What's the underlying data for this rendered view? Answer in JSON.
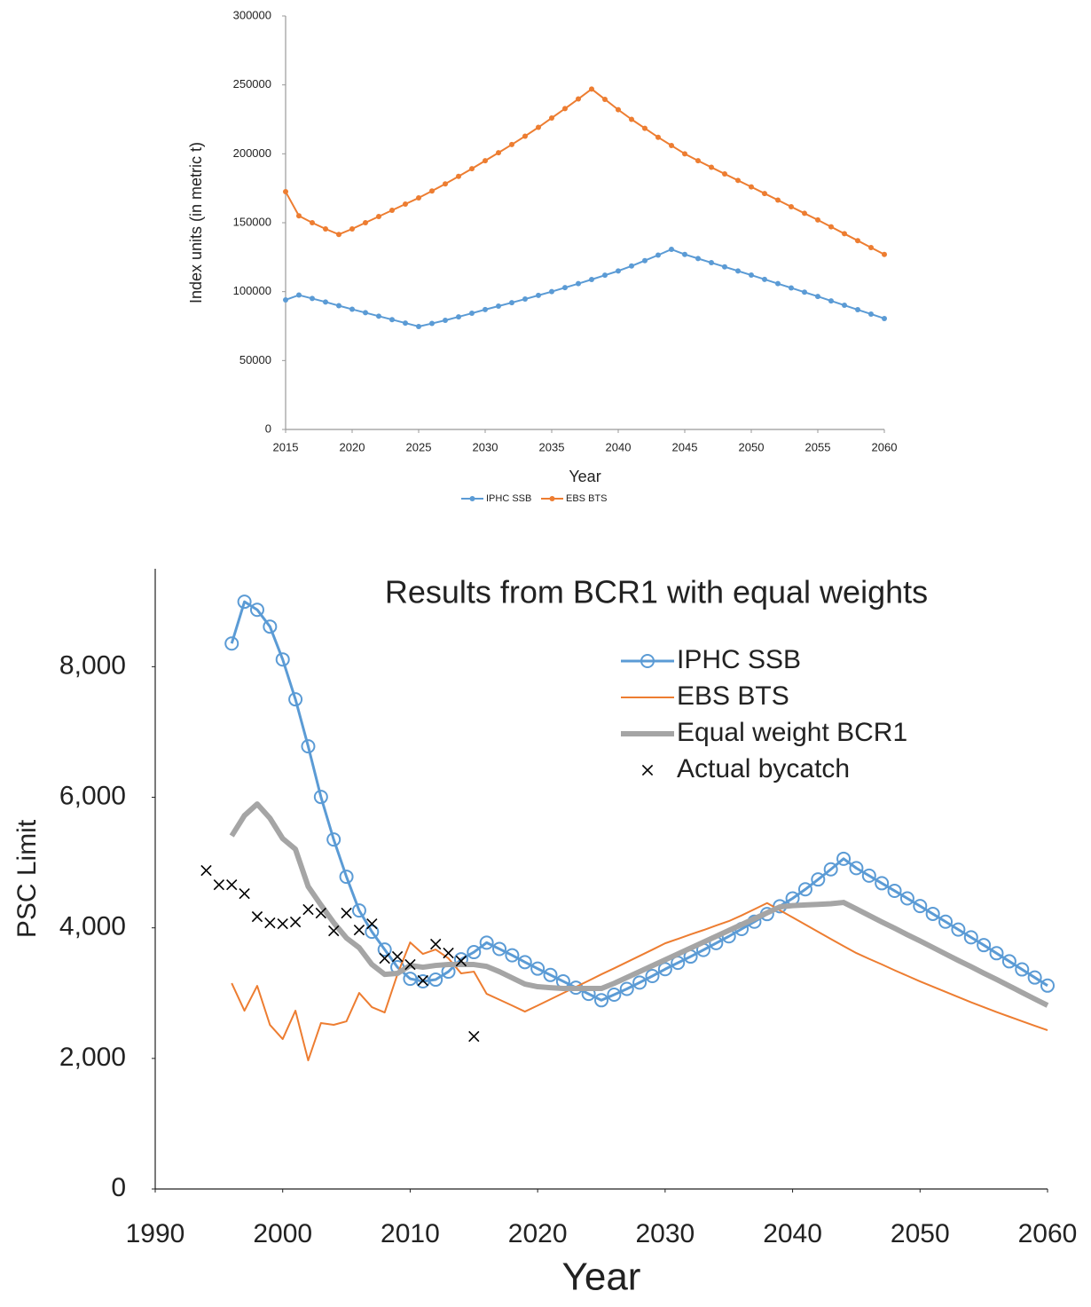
{
  "chart_data": [
    {
      "type": "line",
      "xlabel": "Year",
      "ylabel": "Index units (in metric t)",
      "x": [
        2015,
        2016,
        2017,
        2018,
        2019,
        2020,
        2021,
        2022,
        2023,
        2024,
        2025,
        2026,
        2027,
        2028,
        2029,
        2030,
        2031,
        2032,
        2033,
        2034,
        2035,
        2036,
        2037,
        2038,
        2039,
        2040,
        2041,
        2042,
        2043,
        2044,
        2045,
        2046,
        2047,
        2048,
        2049,
        2050,
        2051,
        2052,
        2053,
        2054,
        2055,
        2056,
        2057,
        2058,
        2059,
        2060
      ],
      "xlim": [
        2015,
        2060
      ],
      "xticks": [
        2015,
        2020,
        2025,
        2030,
        2035,
        2040,
        2045,
        2050,
        2055,
        2060
      ],
      "ylim": [
        0,
        300000
      ],
      "yticks": [
        0,
        50000,
        100000,
        150000,
        200000,
        250000,
        300000
      ],
      "grid": false,
      "legend": "bottom",
      "series": [
        {
          "name": "IPHC SSB",
          "color": "#5b9bd5",
          "marker": "circle",
          "linewidth": 2,
          "values": [
            94000,
            97500,
            95000,
            92500,
            89800,
            87200,
            84700,
            82200,
            79700,
            77200,
            74700,
            76900,
            79200,
            81700,
            84300,
            87000,
            89500,
            92000,
            94600,
            97300,
            100000,
            102900,
            105800,
            108800,
            111900,
            115000,
            118600,
            122500,
            126500,
            130700,
            127000,
            124000,
            121000,
            118000,
            115000,
            112000,
            108900,
            105800,
            102700,
            99600,
            96500,
            93300,
            90100,
            86900,
            83700,
            80500
          ]
        },
        {
          "name": "EBS BTS",
          "color": "#ed7d31",
          "marker": "circle",
          "linewidth": 2,
          "values": [
            172500,
            155000,
            150000,
            145500,
            141500,
            145500,
            150000,
            154500,
            159000,
            163500,
            168000,
            173000,
            178200,
            183600,
            189200,
            195000,
            200800,
            206700,
            212800,
            219200,
            226000,
            232800,
            239800,
            247000,
            239500,
            232000,
            225000,
            218500,
            212000,
            206000,
            200000,
            195000,
            190200,
            185400,
            180700,
            176000,
            171200,
            166400,
            161600,
            156800,
            152000,
            147000,
            142000,
            137000,
            132000,
            127000
          ]
        }
      ]
    },
    {
      "type": "line",
      "title": "Results from BCR1 with equal weights",
      "xlabel": "Year",
      "ylabel": "PSC Limit",
      "x": [
        1996,
        1997,
        1998,
        1999,
        2000,
        2001,
        2002,
        2003,
        2004,
        2005,
        2006,
        2007,
        2008,
        2009,
        2010,
        2011,
        2012,
        2013,
        2014,
        2015,
        2016,
        2017,
        2018,
        2019,
        2020,
        2021,
        2022,
        2023,
        2024,
        2025,
        2026,
        2027,
        2028,
        2029,
        2030,
        2031,
        2032,
        2033,
        2034,
        2035,
        2036,
        2037,
        2038,
        2039,
        2040,
        2041,
        2042,
        2043,
        2044,
        2045,
        2046,
        2047,
        2048,
        2049,
        2050,
        2051,
        2052,
        2053,
        2054,
        2055,
        2056,
        2057,
        2058,
        2059,
        2060
      ],
      "xlim": [
        1990,
        2060
      ],
      "xticks": [
        1990,
        2000,
        2010,
        2020,
        2030,
        2040,
        2050,
        2060
      ],
      "ylim": [
        0,
        9500
      ],
      "yticks": [
        0,
        {
          "value": 2000,
          "label": "2,000"
        },
        {
          "value": 4000,
          "label": "4,000"
        },
        {
          "value": 6000,
          "label": "6,000"
        },
        {
          "value": 8000,
          "label": "8,000"
        }
      ],
      "grid": false,
      "legend": "upper-right",
      "series": [
        {
          "name": "IPHC SSB",
          "color": "#5b9bd5",
          "marker": "open-circle",
          "linewidth": 3,
          "values": [
            8355,
            8995,
            8872,
            8614,
            8111,
            7500,
            6780,
            6005,
            5353,
            4783,
            4266,
            3940,
            3668,
            3397,
            3220,
            3180,
            3207,
            3329,
            3519,
            3628,
            3773,
            3677,
            3580,
            3475,
            3375,
            3278,
            3181,
            3084,
            2988,
            2891,
            2976,
            3065,
            3162,
            3262,
            3367,
            3464,
            3560,
            3661,
            3766,
            3870,
            3982,
            4094,
            4211,
            4331,
            4451,
            4590,
            4741,
            4896,
            5058,
            4915,
            4799,
            4683,
            4567,
            4451,
            4334,
            4214,
            4094,
            3974,
            3855,
            3735,
            3611,
            3487,
            3363,
            3239,
            3115
          ]
        },
        {
          "name": "EBS BTS",
          "color": "#ed7d31",
          "marker": "none",
          "linewidth": 2,
          "values": [
            3152,
            2731,
            3111,
            2514,
            2296,
            2731,
            1970,
            2541,
            2514,
            2568,
            3003,
            2785,
            2704,
            3288,
            3777,
            3600,
            3668,
            3533,
            3302,
            3329,
            2989,
            2900,
            2810,
            2717,
            2810,
            2905,
            3000,
            3095,
            3190,
            3288,
            3380,
            3475,
            3570,
            3665,
            3763,
            3830,
            3900,
            3965,
            4035,
            4103,
            4190,
            4285,
            4380,
            4270,
            4160,
            4050,
            3940,
            3830,
            3720,
            3614,
            3525,
            3440,
            3350,
            3265,
            3179,
            3100,
            3020,
            2940,
            2860,
            2785,
            2710,
            2640,
            2570,
            2500,
            2432
          ]
        },
        {
          "name": "Equal weight BCR1",
          "color": "#a5a5a5",
          "marker": "none",
          "linewidth": 6,
          "values": [
            5408,
            5720,
            5897,
            5679,
            5367,
            5204,
            4633,
            4350,
            4080,
            3845,
            3696,
            3438,
            3288,
            3302,
            3424,
            3397,
            3424,
            3438,
            3438,
            3438,
            3410,
            3329,
            3234,
            3139,
            3098,
            3084,
            3071,
            3071,
            3071,
            3071,
            3150,
            3240,
            3330,
            3420,
            3510,
            3600,
            3690,
            3780,
            3870,
            3960,
            4050,
            4140,
            4230,
            4320,
            4340,
            4350,
            4360,
            4370,
            4389,
            4290,
            4190,
            4090,
            3995,
            3895,
            3800,
            3700,
            3600,
            3500,
            3405,
            3305,
            3210,
            3110,
            3010,
            2910,
            2813
          ]
        },
        {
          "name": "Actual bycatch",
          "color": "#000000",
          "marker": "x",
          "linewidth": 0,
          "x": [
            1994,
            1995,
            1996,
            1997,
            1998,
            1999,
            2000,
            2001,
            2002,
            2003,
            2004,
            2005,
            2006,
            2007,
            2008,
            2009,
            2010,
            2011,
            2012,
            2013,
            2014,
            2015
          ],
          "values": [
            4878,
            4660,
            4660,
            4524,
            4171,
            4076,
            4062,
            4090,
            4280,
            4226,
            3954,
            4226,
            3967,
            4062,
            3533,
            3560,
            3438,
            3193,
            3750,
            3614,
            3492,
            2337
          ]
        }
      ]
    }
  ]
}
